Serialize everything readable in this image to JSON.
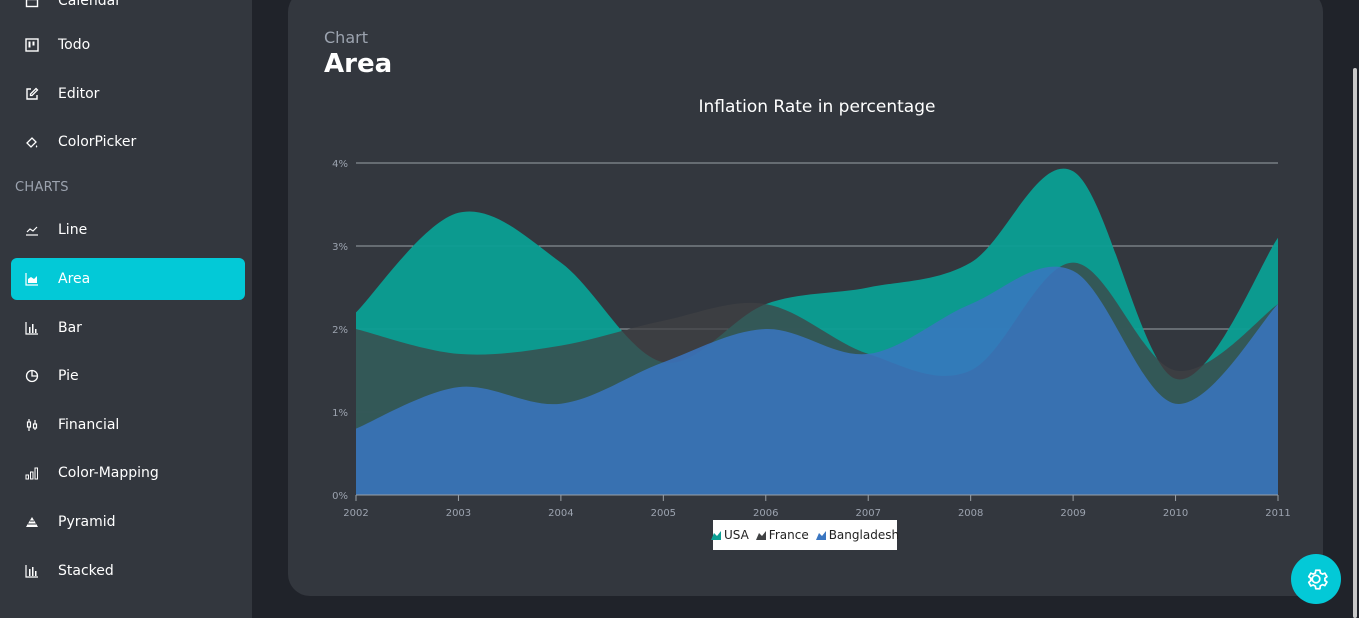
{
  "sidebar": {
    "items_top": [
      {
        "label": "Calendar",
        "icon": "calendar-icon"
      },
      {
        "label": "Todo",
        "icon": "kanban-icon"
      },
      {
        "label": "Editor",
        "icon": "edit-icon"
      },
      {
        "label": "ColorPicker",
        "icon": "color-bucket-icon"
      }
    ],
    "section_title": "CHARTS",
    "items_charts": [
      {
        "label": "Line",
        "icon": "line-chart-icon"
      },
      {
        "label": "Area",
        "icon": "area-chart-icon",
        "active": true
      },
      {
        "label": "Bar",
        "icon": "bar-chart-icon"
      },
      {
        "label": "Pie",
        "icon": "pie-chart-icon"
      },
      {
        "label": "Financial",
        "icon": "candlestick-icon"
      },
      {
        "label": "Color-Mapping",
        "icon": "color-mapping-icon"
      },
      {
        "label": "Pyramid",
        "icon": "pyramid-icon"
      },
      {
        "label": "Stacked",
        "icon": "stacked-chart-icon"
      }
    ]
  },
  "header": {
    "category": "Chart",
    "title": "Area"
  },
  "colors": {
    "accent": "#03c9d7",
    "usa": "#0b9f94",
    "france": "#404244",
    "bangladesh": "#3a76c1"
  },
  "chart_data": {
    "type": "area",
    "title": "Inflation Rate in percentage",
    "x": [
      "2002",
      "2003",
      "2004",
      "2005",
      "2006",
      "2007",
      "2008",
      "2009",
      "2010",
      "2011"
    ],
    "series": [
      {
        "name": "USA",
        "values": [
          2.2,
          3.4,
          2.8,
          1.6,
          2.3,
          2.5,
          2.8,
          3.9,
          1.4,
          3.1
        ]
      },
      {
        "name": "France",
        "values": [
          2.0,
          1.7,
          1.8,
          2.1,
          2.3,
          1.7,
          1.5,
          2.8,
          1.5,
          2.3
        ]
      },
      {
        "name": "Bangladesh",
        "values": [
          0.8,
          1.3,
          1.1,
          1.6,
          2.0,
          1.7,
          2.3,
          2.7,
          1.1,
          2.3
        ]
      }
    ],
    "yticks": [
      "0%",
      "1%",
      "2%",
      "3%",
      "4%"
    ],
    "ylim": [
      0,
      4
    ],
    "grid": true,
    "legend_position": "bottom-center"
  },
  "legend": {
    "items": [
      "USA",
      "France",
      "Bangladesh"
    ]
  }
}
